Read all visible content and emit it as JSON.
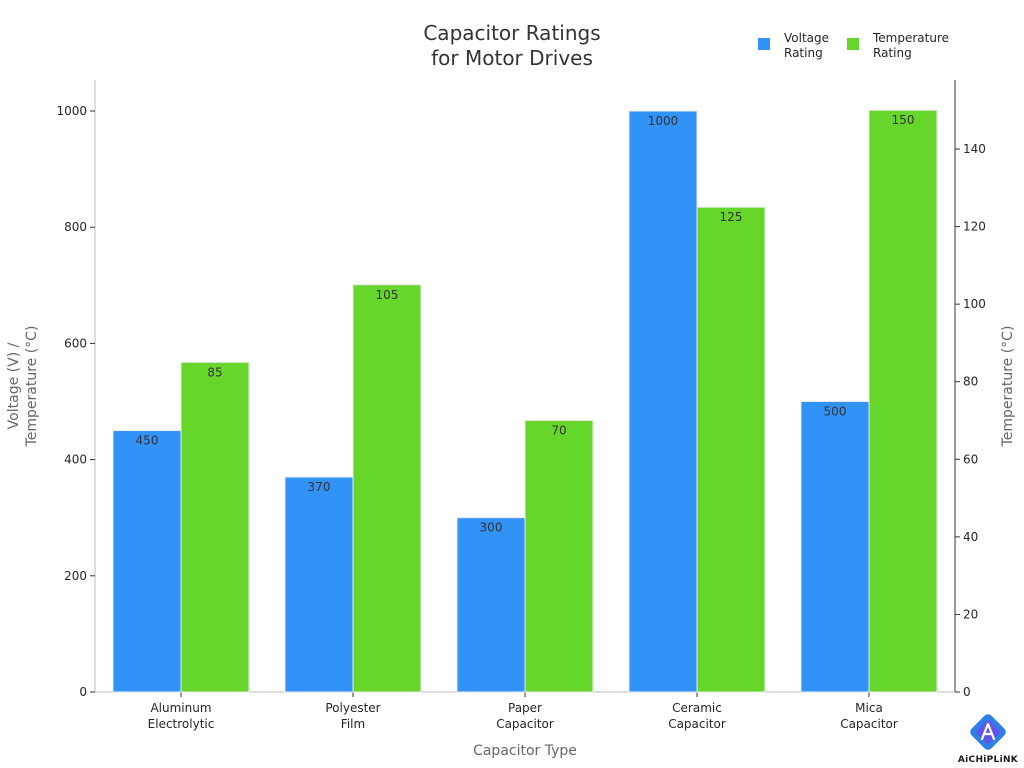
{
  "colors": {
    "voltage": "#3192f8",
    "temperature": "#66d72a",
    "axis": "#bbbbbb",
    "logo_primary": "#2f7fe8",
    "logo_secondary": "#6a4ee6"
  },
  "logo": {
    "text": "AiCHiPLiNK",
    "icon": "aichiplink-logo-icon"
  },
  "chart_data": {
    "type": "bar",
    "title_lines": [
      "Capacitor Ratings",
      "for Motor Drives"
    ],
    "xlabel": "Capacitor Type",
    "ylabel_left_lines": [
      "Voltage (V) /",
      "Temperature (°C)"
    ],
    "ylabel_right": "Temperature (°C)",
    "categories": [
      [
        "Aluminum",
        "Electrolytic"
      ],
      [
        "Polyester",
        "Film"
      ],
      [
        "Paper",
        "Capacitor"
      ],
      [
        "Ceramic",
        "Capacitor"
      ],
      [
        "Mica",
        "Capacitor"
      ]
    ],
    "series": [
      {
        "name_lines": [
          "Voltage",
          "Rating"
        ],
        "axis": "left",
        "values": [
          450,
          370,
          300,
          1000,
          500
        ]
      },
      {
        "name_lines": [
          "Temperature",
          "Rating"
        ],
        "axis": "right",
        "values": [
          85,
          105,
          70,
          125,
          150
        ]
      }
    ],
    "ylim_left": [
      0,
      1050
    ],
    "yticks_left": [
      0,
      200,
      400,
      600,
      800,
      1000
    ],
    "ylim_right": [
      0,
      157.5
    ],
    "yticks_right": [
      0,
      20,
      40,
      60,
      80,
      100,
      120,
      140
    ],
    "grid": false,
    "legend_position": "top-right"
  }
}
